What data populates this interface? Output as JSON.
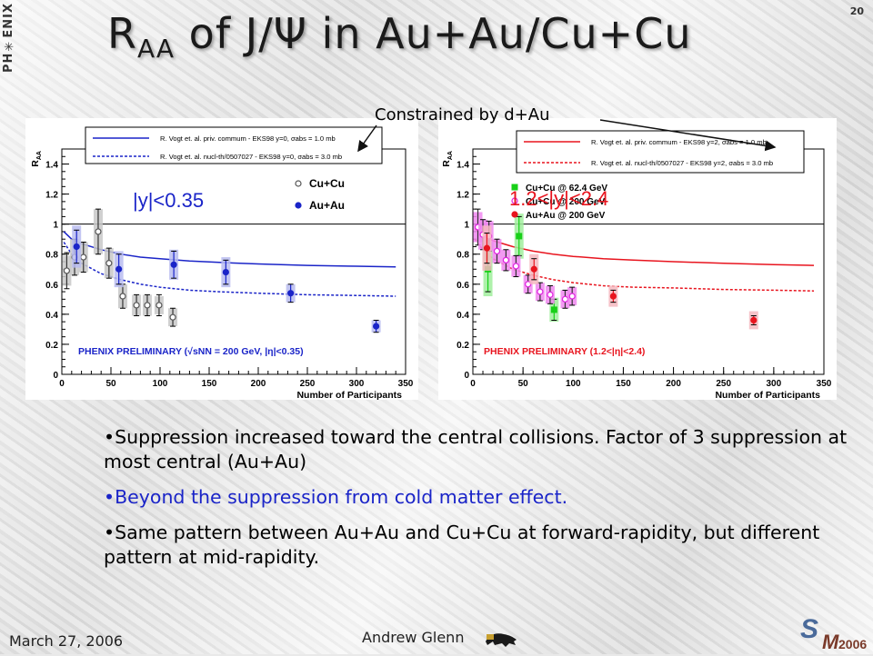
{
  "slide": {
    "number": "20",
    "logo_text": "PH✳ENIX",
    "title_main": "R",
    "title_sub": "AA",
    "title_rest": " of J/Ψ in Au+Au/Cu+Cu",
    "note": "Constrained by d+Au",
    "bullets": [
      "•Suppression increased toward the central collisions. Factor of 3 suppression at most central (Au+Au)",
      "•Beyond the suppression from cold matter effect.",
      "•Same pattern between Au+Au and Cu+Cu at forward-rapidity, but different pattern at mid-rapidity."
    ],
    "footer_date": "March 27, 2006",
    "footer_author": "Andrew Glenn",
    "conference_logo": "SQM2006"
  },
  "colors": {
    "blue": "#1a24c8",
    "red": "#e8141e",
    "magenta": "#e020e0",
    "green": "#18d018",
    "pink_box": "#f4b8c0",
    "blue_box": "#b8bcf0",
    "grey": "#555555"
  },
  "chart_data": [
    {
      "type": "scatter",
      "region_label": "|y|<0.35",
      "xlabel": "Number of Participants",
      "ylabel": "R_AA",
      "xlim": [
        0,
        350
      ],
      "ylim": [
        0,
        1.5
      ],
      "xticks": [
        "0",
        "50",
        "100",
        "150",
        "200",
        "250",
        "300",
        "350"
      ],
      "yticks": [
        "0",
        "0.2",
        "0.4",
        "0.6",
        "0.8",
        "1",
        "1.2",
        "1.4"
      ],
      "reference_line": 1,
      "legend_lines": [
        "R. Vogt et. al. priv. commum - EKS98 y=0, σabs = 1.0 mb",
        "R. Vogt et. al. nucl-th/0507027 - EKS98 y=0, σabs = 3.0 mb"
      ],
      "legend_markers": [
        "Cu+Cu",
        "Au+Au"
      ],
      "preliminary": "PHENIX PRELIMINARY (√sNN = 200 GeV, |η|<0.35)",
      "series": [
        {
          "name": "Cu+Cu",
          "x": [
            5,
            13,
            22,
            37,
            48,
            62,
            76,
            87,
            99,
            113
          ],
          "y": [
            0.69,
            0.78,
            0.78,
            0.95,
            0.74,
            0.52,
            0.46,
            0.46,
            0.46,
            0.38
          ],
          "err": [
            0.12,
            0.12,
            0.1,
            0.15,
            0.1,
            0.08,
            0.07,
            0.07,
            0.07,
            0.06
          ],
          "sys": [
            0.1,
            0.12,
            0.1,
            0.15,
            0.1,
            0.08,
            0.07,
            0.07,
            0.06,
            0.06
          ]
        },
        {
          "name": "Au+Au",
          "x": [
            15,
            58,
            114,
            167,
            233,
            320
          ],
          "y": [
            0.85,
            0.7,
            0.73,
            0.68,
            0.54,
            0.32
          ],
          "err": [
            0.11,
            0.1,
            0.09,
            0.08,
            0.06,
            0.04
          ],
          "sys": [
            0.14,
            0.12,
            0.1,
            0.1,
            0.06,
            0.04
          ]
        }
      ],
      "curves": [
        {
          "name": "σabs = 1.0 mb",
          "style": "solid",
          "x": [
            2,
            10,
            20,
            40,
            60,
            80,
            100,
            130,
            160,
            200,
            250,
            300,
            340
          ],
          "y": [
            0.95,
            0.9,
            0.87,
            0.83,
            0.8,
            0.78,
            0.77,
            0.755,
            0.745,
            0.735,
            0.725,
            0.72,
            0.715
          ]
        },
        {
          "name": "σabs = 3.0 mb",
          "style": "dashed",
          "x": [
            2,
            10,
            20,
            40,
            60,
            80,
            100,
            130,
            160,
            200,
            250,
            300,
            340
          ],
          "y": [
            0.88,
            0.8,
            0.74,
            0.67,
            0.63,
            0.6,
            0.58,
            0.56,
            0.55,
            0.54,
            0.53,
            0.525,
            0.52
          ]
        }
      ]
    },
    {
      "type": "scatter",
      "region_label": "1.2<|y|<2.4",
      "xlabel": "Number of Participants",
      "ylabel": "R_AA",
      "xlim": [
        0,
        350
      ],
      "ylim": [
        0,
        1.5
      ],
      "xticks": [
        "0",
        "50",
        "100",
        "150",
        "200",
        "250",
        "300",
        "350"
      ],
      "yticks": [
        "0",
        "0.2",
        "0.4",
        "0.6",
        "0.8",
        "1",
        "1.2",
        "1.4"
      ],
      "reference_line": 1,
      "legend_lines": [
        "R. Vogt et. al. priv. commum - EKS98 y=2, σabs = 1.0 mb",
        "R. Vogt et. al. nucl-th/0507027 - EKS98 y=2, σabs = 3.0 mb"
      ],
      "legend_markers": [
        "Cu+Cu @ 62.4 GeV",
        "Cu+Cu @ 200 GeV",
        "Au+Au @ 200 GeV"
      ],
      "preliminary": "PHENIX PRELIMINARY (1.2<|η|<2.4)",
      "series": [
        {
          "name": "Cu+Cu @ 62.4 GeV",
          "x": [
            15,
            46,
            81
          ],
          "y": [
            0.7,
            0.92,
            0.43
          ],
          "err": [
            0.15,
            0.13,
            0.07
          ],
          "sys": [
            0.18,
            0.15,
            0.08
          ]
        },
        {
          "name": "Cu+Cu @ 200 GeV",
          "x": [
            5,
            10,
            16,
            24,
            33,
            43,
            55,
            67,
            77,
            92,
            99
          ],
          "y": [
            0.98,
            0.93,
            0.92,
            0.82,
            0.76,
            0.72,
            0.6,
            0.55,
            0.53,
            0.5,
            0.52
          ],
          "err": [
            0.12,
            0.1,
            0.1,
            0.08,
            0.07,
            0.07,
            0.06,
            0.06,
            0.06,
            0.06,
            0.06
          ],
          "sys": [
            0.1,
            0.1,
            0.1,
            0.08,
            0.07,
            0.07,
            0.06,
            0.06,
            0.06,
            0.06,
            0.06
          ]
        },
        {
          "name": "Au+Au @ 200 GeV",
          "x": [
            14,
            61,
            140,
            280
          ],
          "y": [
            0.84,
            0.7,
            0.52,
            0.36
          ],
          "err": [
            0.1,
            0.07,
            0.04,
            0.03
          ],
          "sys": [
            0.15,
            0.1,
            0.07,
            0.06
          ]
        }
      ],
      "curves": [
        {
          "name": "σabs = 1.0 mb",
          "style": "solid",
          "x": [
            2,
            10,
            20,
            40,
            60,
            80,
            100,
            130,
            160,
            200,
            250,
            300,
            340
          ],
          "y": [
            0.97,
            0.92,
            0.89,
            0.85,
            0.82,
            0.8,
            0.785,
            0.77,
            0.76,
            0.75,
            0.74,
            0.73,
            0.725
          ]
        },
        {
          "name": "σabs = 3.0 mb",
          "style": "dashed",
          "x": [
            2,
            10,
            20,
            40,
            60,
            80,
            100,
            130,
            160,
            200,
            250,
            300,
            340
          ],
          "y": [
            0.9,
            0.83,
            0.77,
            0.7,
            0.66,
            0.63,
            0.61,
            0.59,
            0.58,
            0.575,
            0.565,
            0.56,
            0.555
          ]
        }
      ]
    }
  ]
}
